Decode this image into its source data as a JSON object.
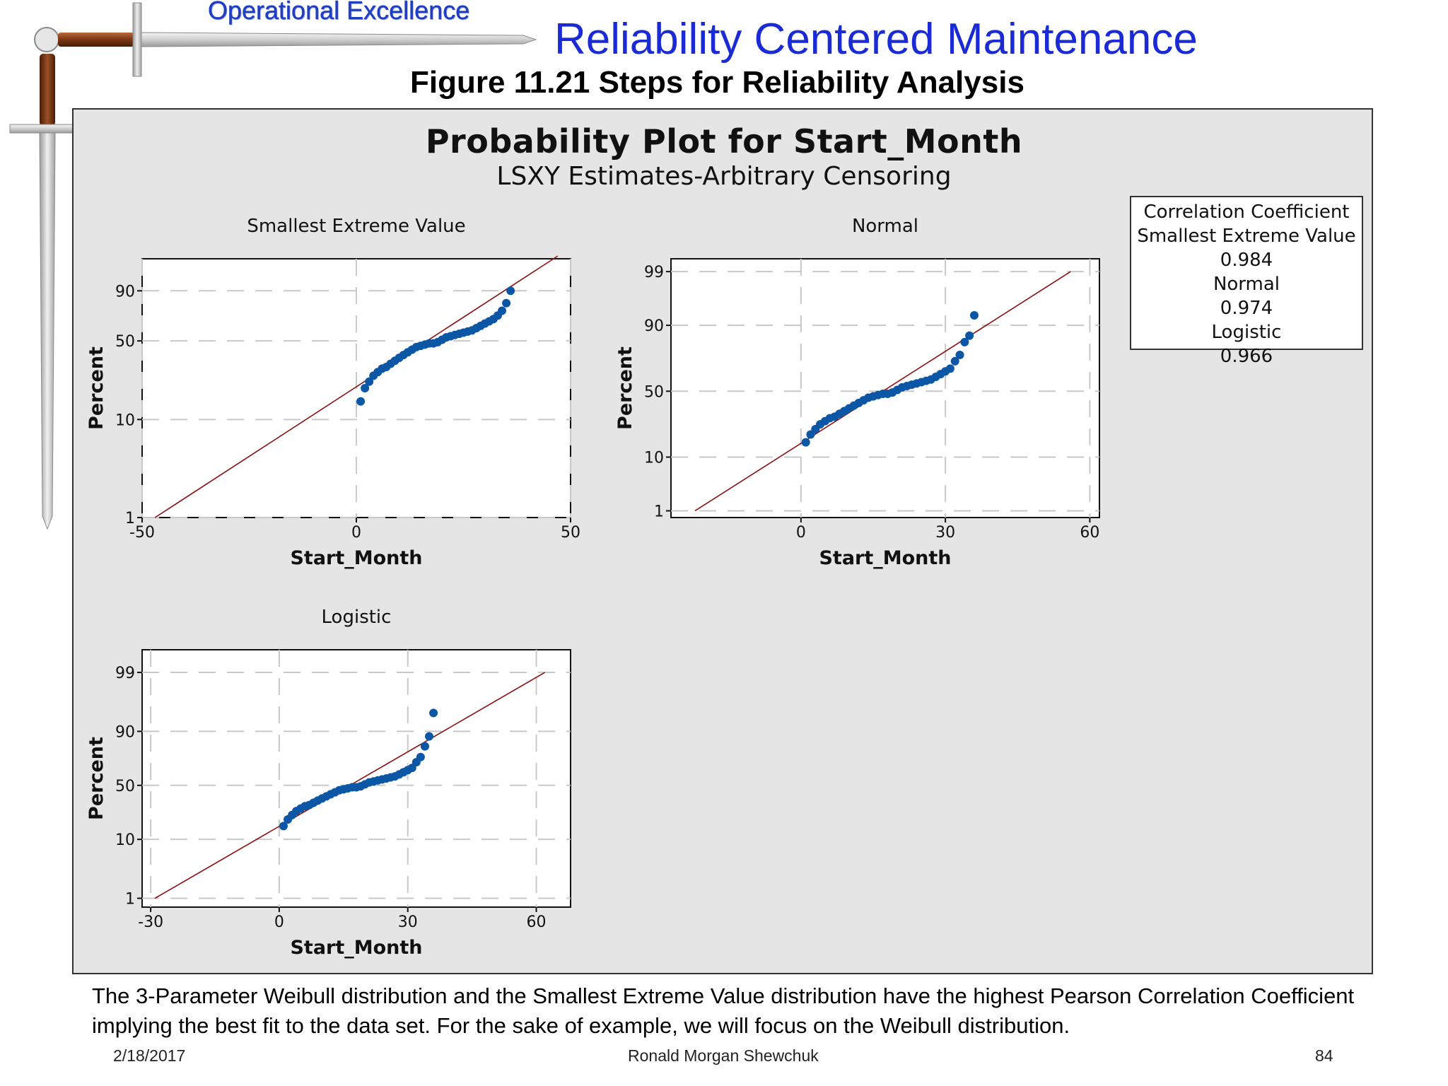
{
  "header": {
    "tag": "Operational Excellence",
    "title": "Reliability Centered Maintenance",
    "figure_title": "Figure 11.21  Steps for Reliability Analysis"
  },
  "plot": {
    "title": "Probability Plot for Start_Month",
    "subtitle": "LSXY Estimates-Arbitrary Censoring"
  },
  "legend": {
    "lines": [
      "Correlation Coefficient",
      "Smallest Extreme Value",
      "0.984",
      "Normal",
      "0.974",
      "Logistic",
      "0.966"
    ]
  },
  "colors": {
    "points": "#0b56a5",
    "fit_line": "#8b1010",
    "panel": "#e5e5e5"
  },
  "chart_data": [
    {
      "type": "scatter",
      "title": "Smallest Extreme Value",
      "xlabel": "Start_Month",
      "ylabel": "Percent",
      "scale": "sev",
      "xlim": [
        -50,
        50
      ],
      "x_ticks": [
        "-50",
        "0",
        "50"
      ],
      "y_ticks": [
        "1",
        "10",
        "50",
        "90"
      ],
      "y_tick_values": [
        1,
        10,
        50,
        90
      ],
      "fit_line": {
        "x": [
          -47,
          47
        ],
        "y": [
          1,
          99.5
        ]
      },
      "points": {
        "x": [
          1,
          2,
          3,
          4,
          5,
          6,
          7,
          8,
          9,
          10,
          11,
          12,
          13,
          14,
          15,
          16,
          17,
          18,
          19,
          20,
          21,
          22,
          23,
          24,
          25,
          26,
          27,
          28,
          29,
          30,
          31,
          32,
          33,
          34,
          35,
          36
        ],
        "y": [
          15,
          20,
          23,
          26,
          28,
          30,
          31,
          33,
          35,
          37,
          39,
          41,
          43,
          45,
          46,
          47,
          48,
          48,
          49,
          51,
          53,
          54,
          55,
          56,
          57,
          58,
          59,
          61,
          63,
          65,
          67,
          69,
          72,
          76,
          82,
          90
        ]
      }
    },
    {
      "type": "scatter",
      "title": "Normal",
      "xlabel": "Start_Month",
      "ylabel": "Percent",
      "scale": "normal",
      "xlim": [
        -27,
        62
      ],
      "x_ticks": [
        "0",
        "30",
        "60"
      ],
      "y_ticks": [
        "1",
        "10",
        "50",
        "90",
        "99"
      ],
      "y_tick_values": [
        1,
        10,
        50,
        90,
        99
      ],
      "fit_line": {
        "x": [
          -22,
          56
        ],
        "y": [
          1,
          99
        ]
      },
      "points": {
        "x": [
          1,
          2,
          3,
          4,
          5,
          6,
          7,
          8,
          9,
          10,
          11,
          12,
          13,
          14,
          15,
          16,
          17,
          18,
          19,
          20,
          21,
          22,
          23,
          24,
          25,
          26,
          27,
          28,
          29,
          30,
          31,
          32,
          33,
          34,
          35,
          36
        ],
        "y": [
          16,
          20,
          23,
          26,
          28,
          30,
          31,
          33,
          35,
          37,
          39,
          41,
          43,
          45,
          46,
          47,
          48,
          48,
          49,
          51,
          53,
          54,
          55,
          56,
          57,
          58,
          59,
          61,
          63,
          65,
          67,
          72,
          76,
          83,
          86,
          93
        ]
      }
    },
    {
      "type": "scatter",
      "title": "Logistic",
      "xlabel": "Start_Month",
      "ylabel": "Percent",
      "scale": "logistic",
      "xlim": [
        -32,
        68
      ],
      "x_ticks": [
        "-30",
        "0",
        "30",
        "60"
      ],
      "y_ticks": [
        "1",
        "10",
        "50",
        "90",
        "99"
      ],
      "y_tick_values": [
        1,
        10,
        50,
        90,
        99
      ],
      "fit_line": {
        "x": [
          -29,
          62
        ],
        "y": [
          1,
          99
        ]
      },
      "points": {
        "x": [
          1,
          2,
          3,
          4,
          5,
          6,
          7,
          8,
          9,
          10,
          11,
          12,
          13,
          14,
          15,
          16,
          17,
          18,
          19,
          20,
          21,
          22,
          23,
          24,
          25,
          26,
          27,
          28,
          29,
          30,
          31,
          32,
          33,
          34,
          35,
          36
        ],
        "y": [
          16,
          20,
          23,
          26,
          28,
          30,
          31,
          33,
          35,
          37,
          39,
          41,
          43,
          45,
          46,
          47,
          48,
          48,
          49,
          51,
          53,
          54,
          55,
          56,
          57,
          58,
          59,
          61,
          63,
          65,
          67,
          72,
          76,
          83,
          88,
          95
        ]
      }
    }
  ],
  "caption": "The 3-Parameter Weibull distribution and the Smallest Extreme Value distribution have the highest Pearson Correlation Coefficient implying the best fit to the data set.  For the sake of example, we will focus on the Weibull distribution.",
  "footer": {
    "date": "2/18/2017",
    "author": "Ronald Morgan Shewchuk",
    "page": "84"
  }
}
